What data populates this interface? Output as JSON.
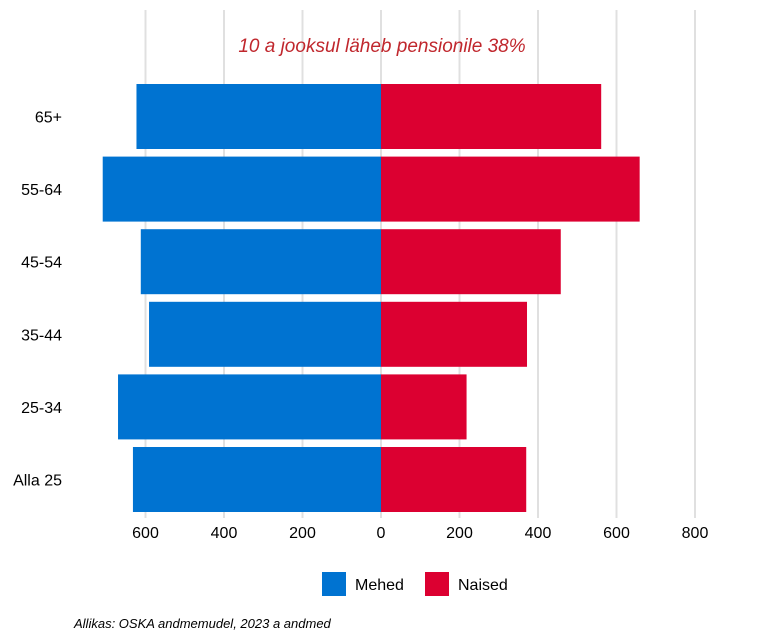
{
  "chart_data": {
    "type": "bar",
    "orientation": "horizontal",
    "layout": "diverging",
    "title": "10 a jooksul läheb pensionile 38%",
    "categories": [
      "65+",
      "55-64",
      "45-54",
      "35-44",
      "25-34",
      "Alla 25"
    ],
    "series": [
      {
        "name": "Mehed",
        "values": [
          623,
          709,
          612,
          591,
          670,
          632
        ],
        "color": "#0073d1"
      },
      {
        "name": "Naised",
        "values": [
          561,
          659,
          458,
          372,
          218,
          370
        ],
        "color": "#dc0031"
      }
    ],
    "xticks": [
      "600",
      "400",
      "200",
      "0",
      "200",
      "400",
      "600",
      "800"
    ],
    "xtick_values": [
      -600,
      -400,
      -200,
      0,
      200,
      400,
      600,
      800
    ],
    "xlim": [
      -760,
      800
    ],
    "grid": true,
    "legend_position": "bottom",
    "title_color": "#c0272d",
    "grid_color": "#e0e0e0"
  },
  "source": "Allikas: OSKA andmemudel, 2023 a andmed"
}
